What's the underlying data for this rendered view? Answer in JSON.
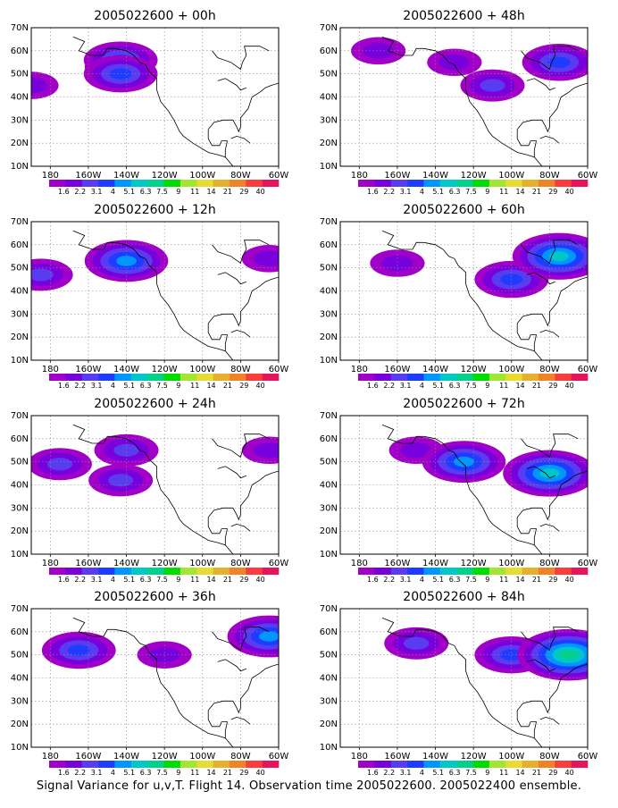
{
  "caption": "Signal Variance for u,v,T. Flight 14. Observation time 2005022600. 2005022400 ensemble.",
  "map": {
    "lat_ticks": [
      "70N",
      "60N",
      "50N",
      "40N",
      "30N",
      "20N",
      "10N"
    ],
    "lon_ticks": [
      "180",
      "160W",
      "140W",
      "120W",
      "100W",
      "80W",
      "60W"
    ],
    "lon_range": [
      -190,
      -60
    ],
    "lat_range": [
      10,
      70
    ]
  },
  "colorbar": {
    "labels": [
      "1.6",
      "2.2",
      "3.1",
      "4",
      "5.1",
      "6.3",
      "7.5",
      "9",
      "11",
      "14",
      "21",
      "29",
      "40"
    ],
    "colors": [
      "#a000c8",
      "#7800dc",
      "#5a3cf0",
      "#1e3cff",
      "#0096ff",
      "#00c8c8",
      "#00d28c",
      "#00dc00",
      "#a0e632",
      "#e6dc32",
      "#e6af2d",
      "#f08228",
      "#fa3c3c",
      "#e6145a"
    ]
  },
  "chart_data": [
    {
      "type": "heatmap",
      "title": "2005022600 + 00h",
      "variable": "signal variance",
      "regions": [
        {
          "lon": -145,
          "lat": 53,
          "level": 2
        },
        {
          "lon": -143,
          "lat": 56,
          "level": 3
        },
        {
          "lon": -143,
          "lat": 50,
          "level": 3
        },
        {
          "lon": -190,
          "lat": 45,
          "level": 1
        }
      ]
    },
    {
      "type": "heatmap",
      "title": "2005022600 + 48h",
      "variable": "signal variance",
      "regions": [
        {
          "lon": -170,
          "lat": 60,
          "level": 1
        },
        {
          "lon": -130,
          "lat": 55,
          "level": 1
        },
        {
          "lon": -110,
          "lat": 45,
          "level": 2
        },
        {
          "lon": -75,
          "lat": 55,
          "level": 3
        }
      ]
    },
    {
      "type": "heatmap",
      "title": "2005022600 + 12h",
      "variable": "signal variance",
      "regions": [
        {
          "lon": -185,
          "lat": 47,
          "level": 2
        },
        {
          "lon": -140,
          "lat": 53,
          "level": 4
        },
        {
          "lon": -65,
          "lat": 54,
          "level": 1
        }
      ]
    },
    {
      "type": "heatmap",
      "title": "2005022600 + 60h",
      "variable": "signal variance",
      "regions": [
        {
          "lon": -160,
          "lat": 52,
          "level": 1
        },
        {
          "lon": -100,
          "lat": 45,
          "level": 3
        },
        {
          "lon": -75,
          "lat": 55,
          "level": 5
        }
      ]
    },
    {
      "type": "heatmap",
      "title": "2005022600 + 24h",
      "variable": "signal variance",
      "regions": [
        {
          "lon": -175,
          "lat": 49,
          "level": 2
        },
        {
          "lon": -140,
          "lat": 55,
          "level": 2
        },
        {
          "lon": -143,
          "lat": 42,
          "level": 2
        },
        {
          "lon": -65,
          "lat": 55,
          "level": 1
        }
      ]
    },
    {
      "type": "heatmap",
      "title": "2005022600 + 72h",
      "variable": "signal variance",
      "regions": [
        {
          "lon": -150,
          "lat": 55,
          "level": 1
        },
        {
          "lon": -125,
          "lat": 50,
          "level": 4
        },
        {
          "lon": -80,
          "lat": 45,
          "level": 5
        }
      ]
    },
    {
      "type": "heatmap",
      "title": "2005022600 + 36h",
      "variable": "signal variance",
      "regions": [
        {
          "lon": -165,
          "lat": 52,
          "level": 3
        },
        {
          "lon": -120,
          "lat": 50,
          "level": 1
        },
        {
          "lon": -65,
          "lat": 58,
          "level": 4
        }
      ]
    },
    {
      "type": "heatmap",
      "title": "2005022600 + 84h",
      "variable": "signal variance",
      "regions": [
        {
          "lon": -150,
          "lat": 55,
          "level": 2
        },
        {
          "lon": -100,
          "lat": 50,
          "level": 3
        },
        {
          "lon": -70,
          "lat": 50,
          "level": 6
        }
      ]
    }
  ]
}
